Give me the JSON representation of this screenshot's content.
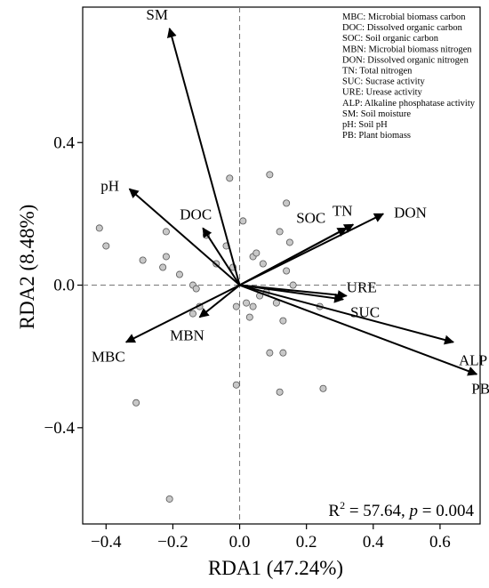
{
  "chart_data": {
    "type": "scatter",
    "xlabel": "RDA1 (47.24%)",
    "ylabel": "RDA2 (8.48%)",
    "xlim": [
      -0.47,
      0.72
    ],
    "ylim": [
      -0.67,
      0.78
    ],
    "xticks": [
      -0.4,
      -0.2,
      0.0,
      0.2,
      0.4,
      0.6
    ],
    "xtick_labels": [
      "−0.4",
      "−0.2",
      "0.0",
      "0.2",
      "0.4",
      "0.6"
    ],
    "yticks": [
      -0.4,
      0.0,
      0.4
    ],
    "ytick_labels": [
      "−0.4",
      "0.0",
      "0.4"
    ],
    "zero_lines": true,
    "points": [
      [
        -0.42,
        0.16
      ],
      [
        -0.4,
        0.11
      ],
      [
        -0.29,
        0.07
      ],
      [
        -0.22,
        0.15
      ],
      [
        -0.22,
        0.08
      ],
      [
        -0.23,
        0.05
      ],
      [
        -0.18,
        0.03
      ],
      [
        -0.14,
        0.0
      ],
      [
        -0.13,
        -0.01
      ],
      [
        -0.12,
        -0.06
      ],
      [
        -0.14,
        -0.08
      ],
      [
        -0.1,
        0.14
      ],
      [
        -0.07,
        0.06
      ],
      [
        -0.04,
        0.11
      ],
      [
        -0.02,
        0.05
      ],
      [
        -0.03,
        0.3
      ],
      [
        0.01,
        0.18
      ],
      [
        0.04,
        0.08
      ],
      [
        0.05,
        0.09
      ],
      [
        0.07,
        0.06
      ],
      [
        0.09,
        0.31
      ],
      [
        0.12,
        0.15
      ],
      [
        0.14,
        0.23
      ],
      [
        0.15,
        0.12
      ],
      [
        0.14,
        0.04
      ],
      [
        0.16,
        0.0
      ],
      [
        0.02,
        -0.05
      ],
      [
        0.04,
        -0.06
      ],
      [
        0.03,
        -0.09
      ],
      [
        -0.01,
        -0.06
      ],
      [
        0.06,
        -0.03
      ],
      [
        0.08,
        -0.02
      ],
      [
        0.11,
        -0.05
      ],
      [
        0.13,
        -0.1
      ],
      [
        0.09,
        -0.19
      ],
      [
        0.13,
        -0.19
      ],
      [
        0.12,
        -0.3
      ],
      [
        -0.01,
        -0.28
      ],
      [
        0.24,
        -0.06
      ],
      [
        0.25,
        -0.29
      ],
      [
        -0.31,
        -0.33
      ],
      [
        -0.21,
        -0.6
      ]
    ],
    "vectors": [
      {
        "name": "SM",
        "x": -0.21,
        "y": 0.72
      },
      {
        "name": "pH",
        "x": -0.33,
        "y": 0.27
      },
      {
        "name": "DOC",
        "x": -0.11,
        "y": 0.16
      },
      {
        "name": "MBC",
        "x": -0.34,
        "y": -0.16
      },
      {
        "name": "MBN",
        "x": -0.12,
        "y": -0.09
      },
      {
        "name": "SOC",
        "x": 0.32,
        "y": 0.16
      },
      {
        "name": "TN",
        "x": 0.34,
        "y": 0.17
      },
      {
        "name": "DON",
        "x": 0.43,
        "y": 0.2
      },
      {
        "name": "URE",
        "x": 0.32,
        "y": -0.03
      },
      {
        "name": "SUC",
        "x": 0.31,
        "y": -0.04
      },
      {
        "name": "ALP",
        "x": 0.64,
        "y": -0.16
      },
      {
        "name": "PB",
        "x": 0.71,
        "y": -0.25
      }
    ],
    "legend": [
      "MBC: Microbial biomass carbon",
      "DOC: Dissolved organic carbon",
      "SOC: Soil organic carbon",
      "MBN: Microbial biomass nitrogen",
      "DON: Dissolved organic nitrogen",
      "TN: Total nitrogen",
      "SUC: Sucrase activity",
      "URE: Urease activity",
      "ALP: Alkaline phosphatase activity",
      "SM: Soil moisture",
      "pH: Soil pH",
      "PB: Plant biomass"
    ],
    "legend_position": "top-right",
    "annotation": {
      "r2_prefix": "R",
      "r2_sup": "2",
      "r2_value": " = 57.64, ",
      "p_symbol": "p",
      "p_value": " = 0.004"
    }
  }
}
